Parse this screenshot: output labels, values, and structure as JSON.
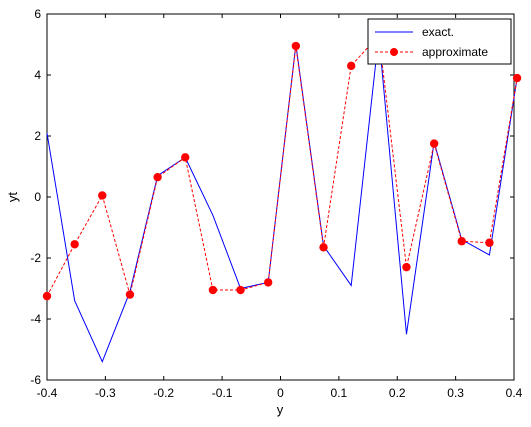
{
  "chart_data": {
    "type": "line",
    "xlabel": "y",
    "ylabel": "yt",
    "xlim": [
      -0.4,
      0.4
    ],
    "ylim": [
      -6,
      6
    ],
    "xticks": [
      "-0.4",
      "-0.3",
      "-0.2",
      "-0.1",
      "0",
      "0.1",
      "0.2",
      "0.3",
      "0.4"
    ],
    "yticks": [
      "6",
      "4",
      "2",
      "0",
      "-2",
      "-4",
      "-6"
    ],
    "grid": false,
    "legend_position": "top-right",
    "x": [
      -0.4,
      -0.3526,
      -0.3053,
      -0.2579,
      -0.2105,
      -0.1632,
      -0.1158,
      -0.0684,
      -0.0211,
      0.0263,
      0.0737,
      0.1211,
      0.1684,
      0.2158,
      0.2632,
      0.3105,
      0.3579,
      0.4053
    ],
    "series": [
      {
        "name": "exact.",
        "color": "#0000ff",
        "style": "solid",
        "values": [
          2.1,
          -3.4,
          -5.4,
          -3.1,
          0.7,
          1.3,
          -0.6,
          -3.0,
          -2.8,
          5.0,
          -1.6,
          -2.9,
          5.3,
          -4.5,
          1.8,
          -1.4,
          -1.9,
          3.9
        ]
      },
      {
        "name": "approximate",
        "color": "#ff0000",
        "style": "dashed",
        "marker": "circle",
        "values": [
          -3.25,
          -1.55,
          0.05,
          -3.2,
          0.65,
          1.3,
          -3.05,
          -3.05,
          -2.8,
          4.95,
          -1.65,
          4.3,
          5.3,
          -2.3,
          1.75,
          -1.45,
          -1.5,
          3.9
        ]
      }
    ]
  }
}
